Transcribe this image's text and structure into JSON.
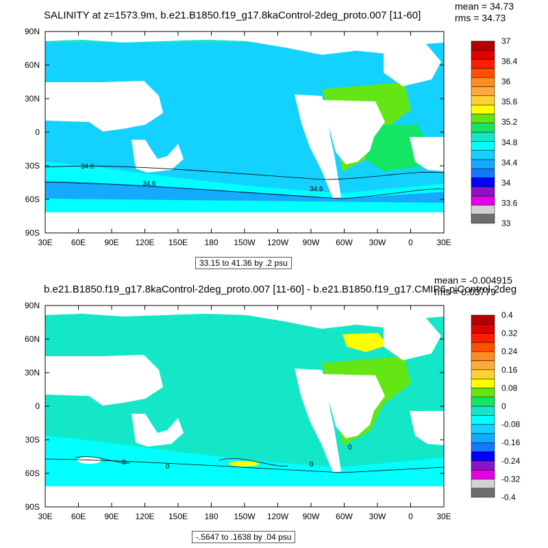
{
  "panels": [
    {
      "title": "SALINITY at z=1573.9m, b.e21.B1850.f19_g17.8kaControl-2deg_proto.007 [11-60]",
      "stats": {
        "mean": "mean = 34.73",
        "rms": "rms = 34.73"
      },
      "range_label": "33.15 to 41.36 by .2 psu",
      "colorbar": {
        "colors": [
          "#6e6e6e",
          "#d2d2d2",
          "#e600e6",
          "#8c14c8",
          "#0000ff",
          "#1478ff",
          "#14aaff",
          "#14d2ff",
          "#00ffff",
          "#14e6c8",
          "#14e664",
          "#64e614",
          "#ffff00",
          "#ffd232",
          "#ffaa3c",
          "#ff8c1e",
          "#ff5000",
          "#ff1e00",
          "#e10000",
          "#b40000"
        ],
        "labels": [
          "33",
          "33.6",
          "34",
          "34.4",
          "34.8",
          "35.2",
          "35.6",
          "36",
          "36.4",
          "37"
        ]
      },
      "field_colors": {
        "main": "#14d2ff",
        "atlantic": "#64e614",
        "south_atlantic": "#14e664",
        "southern": "#00ffff",
        "band": "#14aaff",
        "arctic": "#14e6c8"
      },
      "contour_labels": [
        "34.6",
        "34.6",
        "34.6"
      ]
    },
    {
      "title": "b.e21.B1850.f19_g17.8kaControl-2deg_proto.007 [11-60] - b.e21.B1850.f19_g17.CMIP6-piControl-2deg",
      "stats": {
        "mean": "mean = -0.004915",
        "rms": "rms = 0.03779"
      },
      "range_label": "-.5647 to .1638 by .04 psu",
      "colorbar": {
        "colors": [
          "#6e6e6e",
          "#d2d2d2",
          "#e600e6",
          "#8c14c8",
          "#0000ff",
          "#1478ff",
          "#14aaff",
          "#14d2ff",
          "#00ffff",
          "#14e6c8",
          "#14e664",
          "#64e614",
          "#ffff00",
          "#ffd232",
          "#ffaa3c",
          "#ff8c1e",
          "#ff5000",
          "#ff1e00",
          "#e10000",
          "#b40000"
        ],
        "labels": [
          "-0.4",
          "-0.32",
          "-0.24",
          "-0.16",
          "-0.08",
          "0",
          "0.08",
          "0.16",
          "0.24",
          "0.32",
          "0.4"
        ]
      },
      "field_colors": {
        "main": "#14e6c8",
        "atlantic": "#64e614",
        "labrador": "#ffff00",
        "southern": "#00ffff",
        "anomaly_pos": "#ffff00",
        "anomaly_neg": "#ffffff"
      },
      "contour_labels": [
        "0",
        "0",
        "0",
        "0"
      ]
    }
  ],
  "axes": {
    "x_ticks": [
      "30E",
      "60E",
      "90E",
      "120E",
      "150E",
      "180",
      "150W",
      "120W",
      "90W",
      "60W",
      "30W",
      "0",
      "30E"
    ],
    "y_ticks": [
      "90N",
      "60N",
      "30N",
      "0",
      "30S",
      "60S",
      "90S"
    ]
  }
}
